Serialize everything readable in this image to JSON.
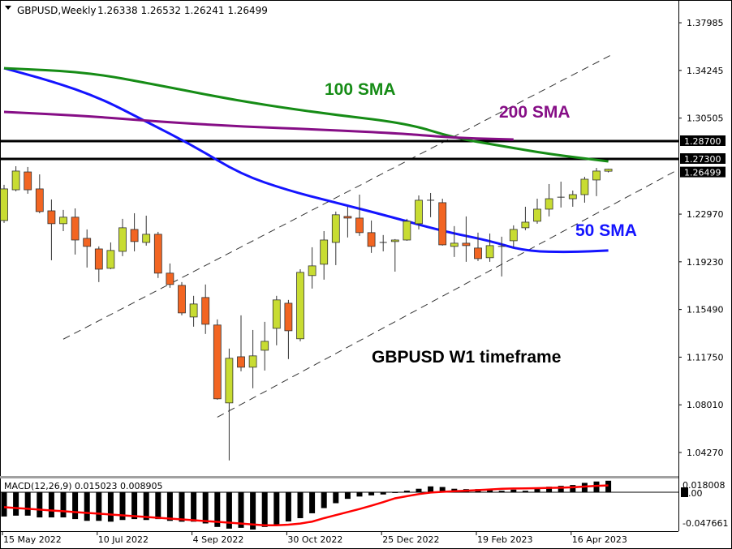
{
  "header": {
    "menu_icon": "triangle-down-icon",
    "symbol": "GBPUSD,Weekly",
    "ohlc": "1.26338 1.26532 1.26241 1.26499"
  },
  "annotations": {
    "sma100": {
      "text": "100 SMA",
      "color": "#168c16"
    },
    "sma200": {
      "text": "200 SMA",
      "color": "#860e86"
    },
    "sma50": {
      "text": "50 SMA",
      "color": "#1414ff"
    },
    "timeframe": {
      "text": "GBPUSD W1 timeframe",
      "color": "#000000"
    }
  },
  "macd_panel": {
    "label": "MACD(12,26,9) 0.015023 0.008905",
    "scale_labels": [
      "0.018008",
      "0.00",
      "-0.047661"
    ]
  },
  "chart_data": [
    {
      "type": "candlestick",
      "symbol": "GBPUSD",
      "timeframe": "Weekly",
      "ylim": [
        1.0236,
        1.3977
      ],
      "grid": false,
      "colors": {
        "bull": "#c8dc32",
        "bear": "#f26522",
        "outline": "#333333"
      },
      "y_tick_labels": [
        "1.37985",
        "1.34245",
        "1.30505",
        "1.22970",
        "1.19230",
        "1.15490",
        "1.11750",
        "1.08010",
        "1.04270"
      ],
      "x_tick_labels": [
        "15 May 2022",
        "10 Jul 2022",
        "4 Sep 2022",
        "30 Oct 2022",
        "25 Dec 2022",
        "19 Feb 2023",
        "16 Apr 2023"
      ],
      "candles_fields": [
        "date",
        "open",
        "high",
        "low",
        "close"
      ],
      "candles": [
        [
          "15 May 2022",
          1.2247,
          1.2527,
          1.2228,
          1.2495
        ],
        [
          "22 May 2022",
          1.2488,
          1.2673,
          1.2476,
          1.2635
        ],
        [
          "29 May 2022",
          1.2628,
          1.2667,
          1.2457,
          1.2488
        ],
        [
          "5 Jun 2022",
          1.2495,
          1.2609,
          1.2304,
          1.2317
        ],
        [
          "12 Jun 2022",
          1.2323,
          1.2412,
          1.1935,
          1.2222
        ],
        [
          "19 Jun 2022",
          1.2222,
          1.233,
          1.2164,
          1.2273
        ],
        [
          "26 Jun 2022",
          1.2273,
          1.2342,
          1.198,
          1.2094
        ],
        [
          "3 Jul 2022",
          1.2107,
          1.2177,
          1.1878,
          1.2044
        ],
        [
          "10 Jul 2022",
          1.2024,
          1.2044,
          1.1764,
          1.1865
        ],
        [
          "17 Jul 2022",
          1.1872,
          1.2075,
          1.1865,
          1.2012
        ],
        [
          "24 Jul 2022",
          1.2005,
          1.226,
          1.1967,
          1.219
        ],
        [
          "31 Jul 2022",
          1.2177,
          1.2304,
          1.2005,
          1.2082
        ],
        [
          "7 Aug 2022",
          1.2075,
          1.2285,
          1.205,
          1.2139
        ],
        [
          "14 Aug 2022",
          1.2139,
          1.2158,
          1.1796,
          1.1834
        ],
        [
          "21 Aug 2022",
          1.1834,
          1.191,
          1.1719,
          1.1745
        ],
        [
          "28 Aug 2022",
          1.1738,
          1.1764,
          1.1503,
          1.1522
        ],
        [
          "4 Sep 2022",
          1.149,
          1.1656,
          1.1414,
          1.1592
        ],
        [
          "11 Sep 2022",
          1.1643,
          1.1745,
          1.1357,
          1.1433
        ],
        [
          "18 Sep 2022",
          1.1427,
          1.1471,
          1.0841,
          1.0848
        ],
        [
          "25 Sep 2022",
          1.0816,
          1.1242,
          1.0365,
          1.1166
        ],
        [
          "2 Oct 2022",
          1.1178,
          1.1503,
          1.1064,
          1.1096
        ],
        [
          "9 Oct 2022",
          1.1096,
          1.1388,
          1.0931,
          1.1185
        ],
        [
          "16 Oct 2022",
          1.1229,
          1.1452,
          1.107,
          1.1299
        ],
        [
          "23 Oct 2022",
          1.1401,
          1.1656,
          1.1268,
          1.1624
        ],
        [
          "30 Oct 2022",
          1.1598,
          1.1624,
          1.116,
          1.1382
        ],
        [
          "6 Nov 2022",
          1.1319,
          1.1865,
          1.1299,
          1.184
        ],
        [
          "13 Nov 2022",
          1.1815,
          1.2037,
          1.1713,
          1.1891
        ],
        [
          "20 Nov 2022",
          1.1904,
          1.2164,
          1.1783,
          1.2094
        ],
        [
          "27 Nov 2022",
          1.2075,
          1.2317,
          1.1897,
          1.2292
        ],
        [
          "4 Dec 2022",
          1.2279,
          1.2355,
          1.2114,
          1.2266
        ],
        [
          "11 Dec 2022",
          1.2266,
          1.245,
          1.2126,
          1.2152
        ],
        [
          "18 Dec 2022",
          1.2152,
          1.2247,
          1.1993,
          1.2044
        ],
        [
          "25 Dec 2022",
          1.2075,
          1.2133,
          1.2005,
          1.2069
        ],
        [
          "1 Jan 2023",
          1.2082,
          1.2101,
          1.1846,
          1.2094
        ],
        [
          "8 Jan 2023",
          1.2094,
          1.226,
          1.2088,
          1.2241
        ],
        [
          "15 Jan 2023",
          1.2222,
          1.2444,
          1.2177,
          1.2406
        ],
        [
          "22 Jan 2023",
          1.2406,
          1.2463,
          1.2273,
          1.24
        ],
        [
          "29 Jan 2023",
          1.2387,
          1.2418,
          1.205,
          1.2056
        ],
        [
          "5 Feb 2023",
          1.2044,
          1.2203,
          1.1961,
          1.2069
        ],
        [
          "12 Feb 2023",
          1.2069,
          1.2279,
          1.1923,
          1.205
        ],
        [
          "19 Feb 2023",
          1.2031,
          1.2152,
          1.1929,
          1.1948
        ],
        [
          "26 Feb 2023",
          1.1955,
          1.2145,
          1.1923,
          1.205
        ],
        [
          "5 Mar 2023",
          1.2037,
          1.212,
          1.1808,
          1.2044
        ],
        [
          "12 Mar 2023",
          1.2088,
          1.2209,
          1.2037,
          1.2177
        ],
        [
          "19 Mar 2023",
          1.219,
          1.2355,
          1.2171,
          1.2234
        ],
        [
          "26 Mar 2023",
          1.2241,
          1.2418,
          1.2222,
          1.2336
        ],
        [
          "2 Apr 2023",
          1.2336,
          1.2533,
          1.2279,
          1.2418
        ],
        [
          "9 Apr 2023",
          1.2425,
          1.2552,
          1.2349,
          1.243
        ],
        [
          "16 Apr 2023",
          1.2418,
          1.2482,
          1.2355,
          1.245
        ],
        [
          "23 Apr 2023",
          1.245,
          1.259,
          1.2387,
          1.2571
        ],
        [
          "30 Apr 2023",
          1.2565,
          1.266,
          1.2438,
          1.2635
        ],
        [
          "7 May 2023",
          1.26338,
          1.26532,
          1.26241,
          1.26499
        ]
      ],
      "moving_averages": [
        {
          "name": "50 SMA",
          "color": "#1414ff",
          "points": [
            [
              "15 May 2022",
              1.3442
            ],
            [
              "12 Jun 2022",
              1.3341
            ],
            [
              "10 Jul 2022",
              1.3213
            ],
            [
              "7 Aug 2022",
              1.3023
            ],
            [
              "4 Sep 2022",
              1.2832
            ],
            [
              "2 Oct 2022",
              1.2609
            ],
            [
              "30 Oct 2022",
              1.2482
            ],
            [
              "27 Nov 2022",
              1.2387
            ],
            [
              "25 Dec 2022",
              1.2292
            ],
            [
              "29 Jan 2023",
              1.2164
            ],
            [
              "26 Feb 2023",
              1.2088
            ],
            [
              "19 Mar 2023",
              1.2005
            ],
            [
              "16 Apr 2023",
              1.1999
            ],
            [
              "7 May 2023",
              1.2012
            ]
          ]
        },
        {
          "name": "100 SMA",
          "color": "#168c16",
          "points": [
            [
              "15 May 2022",
              1.3442
            ],
            [
              "3 Jul 2022",
              1.3412
            ],
            [
              "14 Aug 2022",
              1.3309
            ],
            [
              "2 Oct 2022",
              1.3182
            ],
            [
              "20 Nov 2022",
              1.3086
            ],
            [
              "8 Jan 2023",
              1.301
            ],
            [
              "5 Feb 2023",
              1.2895
            ],
            [
              "5 Mar 2023",
              1.2832
            ],
            [
              "2 Apr 2023",
              1.2768
            ],
            [
              "7 May 2023",
              1.2711
            ]
          ]
        },
        {
          "name": "200 SMA",
          "color": "#860e86",
          "points": [
            [
              "15 May 2022",
              1.3099
            ],
            [
              "3 Jul 2022",
              1.3067
            ],
            [
              "14 Aug 2022",
              1.3023
            ],
            [
              "2 Oct 2022",
              1.2984
            ],
            [
              "20 Nov 2022",
              1.2959
            ],
            [
              "8 Jan 2023",
              1.2927
            ],
            [
              "5 Feb 2023",
              1.2895
            ],
            [
              "12 Mar 2023",
              1.2883
            ]
          ]
        }
      ],
      "horizontal_levels": [
        {
          "value": 1.287,
          "label": "1.28700"
        },
        {
          "value": 1.273,
          "label": "1.27300"
        }
      ],
      "current_price": {
        "value": 1.26499,
        "label": "1.26499"
      },
      "channel_lines": [
        {
          "style": "dashed",
          "from": [
            "19 Jun 2022",
            1.1316
          ],
          "to": [
            "7 May 2023",
            1.3547
          ],
          "extend_right": false
        },
        {
          "style": "dashed",
          "from": [
            "18 Sep 2022",
            1.0704
          ],
          "to": [
            "7 May 2023",
            1.2366
          ],
          "extend_right": true
        }
      ]
    },
    {
      "type": "bar+line",
      "indicator": "MACD(12,26,9)",
      "ylim": [
        -0.051,
        0.018
      ],
      "histogram_color": "#000000",
      "signal_color": "#ff0000",
      "histogram": [
        -0.0318,
        -0.0307,
        -0.0307,
        -0.033,
        -0.033,
        -0.033,
        -0.0352,
        -0.0375,
        -0.0375,
        -0.0386,
        -0.0364,
        -0.0352,
        -0.0364,
        -0.0352,
        -0.0375,
        -0.0386,
        -0.0386,
        -0.0409,
        -0.0455,
        -0.0477,
        -0.0466,
        -0.0489,
        -0.0455,
        -0.0428,
        -0.0383,
        -0.034,
        -0.0276,
        -0.0208,
        -0.0144,
        -0.0087,
        -0.0057,
        -0.0042,
        -0.003,
        -0.001,
        0.002,
        0.0045,
        0.0076,
        0.0068,
        0.0045,
        0.004,
        0.004,
        0.0038,
        0.0019,
        0.0034,
        0.0019,
        0.0045,
        0.0072,
        0.0083,
        0.0094,
        0.0122,
        0.014,
        0.015023
      ],
      "signal": [
        -0.0196,
        -0.0207,
        -0.0217,
        -0.0228,
        -0.0239,
        -0.0249,
        -0.026,
        -0.0271,
        -0.0281,
        -0.0292,
        -0.0303,
        -0.0314,
        -0.0324,
        -0.0335,
        -0.0346,
        -0.0356,
        -0.0367,
        -0.0378,
        -0.0388,
        -0.0399,
        -0.041,
        -0.0422,
        -0.0433,
        -0.0433,
        -0.0425,
        -0.041,
        -0.0385,
        -0.034,
        -0.03,
        -0.026,
        -0.022,
        -0.0176,
        -0.013,
        -0.008,
        -0.0052,
        -0.0025,
        -0.0004,
        0.0005,
        0.0013,
        0.002,
        0.0028,
        0.0036,
        0.0045,
        0.0048,
        0.005,
        0.0053,
        0.0056,
        0.0059,
        0.0065,
        0.0074,
        0.0083,
        0.008905
      ]
    }
  ]
}
